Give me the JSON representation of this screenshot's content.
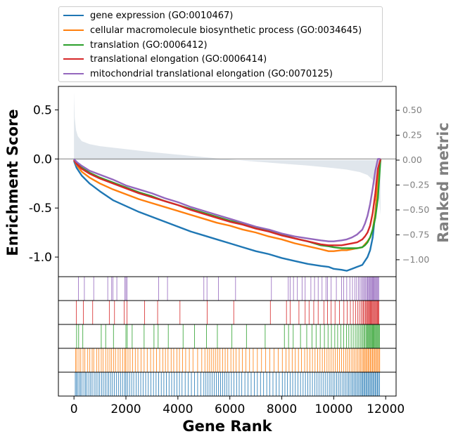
{
  "chart_data": {
    "type": "line",
    "title": "",
    "xlabel": "Gene Rank",
    "ylabel": "Enrichment Score",
    "y2label": "Ranked metric",
    "xlim": [
      -600,
      12400
    ],
    "ylim": [
      -1.2,
      0.74
    ],
    "y2lim": [
      -1.17,
      0.74
    ],
    "x_ticks": [
      0,
      2000,
      4000,
      6000,
      8000,
      10000,
      12000
    ],
    "x_tick_labels": [
      "0",
      "2000",
      "4000",
      "6000",
      "8000",
      "10000",
      "12000"
    ],
    "y_ticks": [
      0.5,
      0.0,
      -0.5,
      -1.0
    ],
    "y_tick_labels": [
      "0.5",
      "0.0",
      "-0.5",
      "-1.0"
    ],
    "y2_ticks": [
      0.5,
      0.25,
      0.0,
      -0.25,
      -0.5,
      -0.75,
      -1.0
    ],
    "y2_tick_labels": [
      "0.50",
      "0.25",
      "0.00",
      "−0.25",
      "−0.50",
      "−0.75",
      "−1.00"
    ],
    "legend_position": "top (above plot)",
    "grid": false,
    "ranked_metric": {
      "color": "#d5dee6",
      "x": [
        0,
        30,
        80,
        150,
        300,
        600,
        1000,
        2000,
        3000,
        4000,
        5000,
        6000,
        7000,
        8000,
        9000,
        10000,
        10500,
        11000,
        11300,
        11500,
        11650,
        11750,
        11800
      ],
      "values": [
        0.68,
        0.42,
        0.3,
        0.24,
        0.19,
        0.16,
        0.14,
        0.11,
        0.08,
        0.055,
        0.03,
        0.005,
        -0.015,
        -0.035,
        -0.055,
        -0.08,
        -0.095,
        -0.12,
        -0.15,
        -0.2,
        -0.3,
        -0.42,
        -0.55
      ]
    },
    "series": [
      {
        "name": "gene expression (GO:0010467)",
        "color": "#1f77b4",
        "x": [
          0,
          100,
          300,
          600,
          1000,
          1500,
          2000,
          2500,
          3000,
          3500,
          4000,
          4500,
          5000,
          5500,
          6000,
          6500,
          7000,
          7500,
          8000,
          8500,
          9000,
          9500,
          9800,
          10000,
          10300,
          10500,
          10700,
          10900,
          11100,
          11200,
          11300,
          11400,
          11500,
          11600,
          11700,
          11800
        ],
        "values": [
          -0.02,
          -0.09,
          -0.17,
          -0.25,
          -0.33,
          -0.42,
          -0.48,
          -0.54,
          -0.59,
          -0.64,
          -0.69,
          -0.74,
          -0.78,
          -0.82,
          -0.86,
          -0.9,
          -0.94,
          -0.97,
          -1.01,
          -1.04,
          -1.07,
          -1.09,
          -1.1,
          -1.12,
          -1.13,
          -1.14,
          -1.12,
          -1.1,
          -1.08,
          -1.04,
          -1.0,
          -0.93,
          -0.8,
          -0.55,
          -0.2,
          0.0
        ]
      },
      {
        "name": "cellular macromolecule biosynthetic process (GO:0034645)",
        "color": "#ff7f0e",
        "x": [
          0,
          100,
          300,
          600,
          1000,
          1500,
          2000,
          2500,
          3000,
          3500,
          4000,
          4500,
          5000,
          5500,
          6000,
          6500,
          7000,
          7500,
          8000,
          8500,
          9000,
          9500,
          9800,
          10000,
          10300,
          10500,
          10700,
          10900,
          11100,
          11200,
          11300,
          11400,
          11500,
          11600,
          11700,
          11800
        ],
        "values": [
          -0.01,
          -0.06,
          -0.13,
          -0.19,
          -0.25,
          -0.31,
          -0.36,
          -0.41,
          -0.45,
          -0.49,
          -0.53,
          -0.57,
          -0.61,
          -0.65,
          -0.68,
          -0.72,
          -0.75,
          -0.79,
          -0.82,
          -0.86,
          -0.89,
          -0.92,
          -0.94,
          -0.94,
          -0.93,
          -0.93,
          -0.92,
          -0.91,
          -0.9,
          -0.87,
          -0.84,
          -0.8,
          -0.72,
          -0.55,
          -0.22,
          0.0
        ]
      },
      {
        "name": "translation (GO:0006412)",
        "color": "#2ca02c",
        "x": [
          0,
          100,
          300,
          600,
          1000,
          1500,
          2000,
          2500,
          3000,
          3500,
          4000,
          4500,
          5000,
          5500,
          6000,
          6500,
          7000,
          7500,
          8000,
          8500,
          9000,
          9500,
          9800,
          10000,
          10300,
          10500,
          10700,
          10900,
          11100,
          11200,
          11300,
          11400,
          11500,
          11600,
          11700,
          11800
        ],
        "values": [
          0.0,
          -0.04,
          -0.09,
          -0.14,
          -0.19,
          -0.24,
          -0.29,
          -0.34,
          -0.38,
          -0.43,
          -0.47,
          -0.51,
          -0.55,
          -0.59,
          -0.63,
          -0.66,
          -0.7,
          -0.73,
          -0.77,
          -0.81,
          -0.84,
          -0.88,
          -0.89,
          -0.9,
          -0.91,
          -0.91,
          -0.91,
          -0.91,
          -0.9,
          -0.88,
          -0.85,
          -0.8,
          -0.72,
          -0.6,
          -0.4,
          0.0
        ]
      },
      {
        "name": "translational elongation (GO:0006414)",
        "color": "#d62728",
        "x": [
          0,
          100,
          300,
          600,
          1000,
          1500,
          2000,
          2500,
          3000,
          3500,
          4000,
          4500,
          5000,
          5500,
          6000,
          6500,
          7000,
          7500,
          8000,
          8500,
          9000,
          9500,
          9800,
          10000,
          10300,
          10500,
          10700,
          10900,
          11100,
          11200,
          11300,
          11400,
          11500,
          11600,
          11700,
          11800
        ],
        "values": [
          -0.01,
          -0.05,
          -0.1,
          -0.15,
          -0.2,
          -0.25,
          -0.3,
          -0.35,
          -0.39,
          -0.43,
          -0.47,
          -0.52,
          -0.56,
          -0.6,
          -0.64,
          -0.67,
          -0.71,
          -0.74,
          -0.78,
          -0.81,
          -0.84,
          -0.87,
          -0.88,
          -0.88,
          -0.88,
          -0.87,
          -0.86,
          -0.85,
          -0.82,
          -0.79,
          -0.75,
          -0.68,
          -0.55,
          -0.35,
          -0.1,
          0.0
        ]
      },
      {
        "name": "mitochondrial translational elongation (GO:0070125)",
        "color": "#9467bd",
        "x": [
          0,
          100,
          300,
          600,
          1000,
          1500,
          2000,
          2500,
          3000,
          3500,
          4000,
          4500,
          5000,
          5500,
          6000,
          6500,
          7000,
          7500,
          8000,
          8500,
          9000,
          9500,
          9800,
          10000,
          10300,
          10500,
          10700,
          10900,
          11100,
          11200,
          11300,
          11400,
          11500,
          11600,
          11700,
          11800
        ],
        "values": [
          0.0,
          -0.03,
          -0.07,
          -0.12,
          -0.16,
          -0.21,
          -0.27,
          -0.31,
          -0.35,
          -0.4,
          -0.44,
          -0.49,
          -0.53,
          -0.57,
          -0.61,
          -0.65,
          -0.69,
          -0.72,
          -0.76,
          -0.79,
          -0.81,
          -0.83,
          -0.84,
          -0.84,
          -0.83,
          -0.82,
          -0.8,
          -0.77,
          -0.72,
          -0.66,
          -0.58,
          -0.46,
          -0.3,
          -0.12,
          0.0,
          0.0
        ]
      }
    ],
    "hit_tracks": [
      {
        "series": "mitochondrial translational elongation (GO:0070125)",
        "color": "#9467bd",
        "hits": [
          170,
          400,
          760,
          1300,
          1450,
          1500,
          1650,
          1960,
          2000,
          2040,
          3260,
          3600,
          5000,
          5120,
          5560,
          6220,
          7600,
          8250,
          8320,
          8450,
          8600,
          8780,
          8900,
          9120,
          9260,
          9400,
          9550,
          9700,
          9760,
          9900,
          10100,
          10300,
          10380,
          10500,
          10620,
          10720,
          10810,
          10880,
          10950,
          11010,
          11060,
          11110,
          11150,
          11190,
          11230,
          11270,
          11300,
          11340,
          11370,
          11400,
          11430,
          11460,
          11490,
          11520,
          11550,
          11580,
          11610,
          11640,
          11670,
          11700,
          11730
        ]
      },
      {
        "series": "translational elongation (GO:0006414)",
        "color": "#d62728",
        "hits": [
          90,
          360,
          720,
          1360,
          1560,
          1930,
          2040,
          2720,
          3220,
          4080,
          5130,
          6150,
          7560,
          8180,
          8320,
          8660,
          8900,
          9050,
          9230,
          9400,
          9620,
          9760,
          9900,
          10050,
          10220,
          10390,
          10520,
          10640,
          10750,
          10840,
          10920,
          10990,
          11050,
          11100,
          11140,
          11180,
          11220,
          11260,
          11290,
          11320,
          11350,
          11380,
          11410,
          11440,
          11470,
          11500,
          11530,
          11560,
          11590,
          11620,
          11650,
          11680,
          11710,
          11740
        ]
      },
      {
        "series": "translation (GO:0006412)",
        "color": "#2ca02c",
        "hits": [
          100,
          180,
          340,
          1050,
          1220,
          1520,
          2000,
          2050,
          2240,
          2700,
          3080,
          3240,
          3630,
          4200,
          4640,
          5100,
          5520,
          6080,
          6640,
          7360,
          8100,
          8260,
          8440,
          8720,
          8960,
          9160,
          9320,
          9480,
          9640,
          9780,
          9910,
          10040,
          10150,
          10270,
          10380,
          10490,
          10580,
          10670,
          10750,
          10830,
          10900,
          10960,
          11020,
          11070,
          11120,
          11160,
          11200,
          11240,
          11280,
          11310,
          11340,
          11370,
          11400,
          11430,
          11460,
          11490,
          11520,
          11550,
          11580,
          11610,
          11640,
          11670,
          11700,
          11730,
          11760
        ]
      },
      {
        "series": "cellular macromolecule biosynthetic process (GO:0034645)",
        "color": "#ff7f0e",
        "hits": [
          60,
          110,
          190,
          260,
          350,
          420,
          530,
          610,
          700,
          760,
          880,
          960,
          1050,
          1120,
          1220,
          1300,
          1380,
          1450,
          1530,
          1600,
          1700,
          1780,
          1880,
          1960,
          2000,
          2080,
          2160,
          2260,
          2360,
          2460,
          2580,
          2700,
          2820,
          2950,
          3060,
          3180,
          3300,
          3420,
          3520,
          3620,
          3740,
          3840,
          3960,
          4060,
          4180,
          4300,
          4440,
          4580,
          4760,
          4920,
          5040,
          5140,
          5220,
          5300,
          5380,
          5460,
          5540,
          5620,
          5720,
          5820,
          5920,
          6040,
          6140,
          6240,
          6360,
          6480,
          6620,
          6760,
          6900,
          7060,
          7220,
          7380,
          7540,
          7700,
          7860,
          8020,
          8160,
          8280,
          8400,
          8520,
          8640,
          8760,
          8880,
          8980,
          9080,
          9180,
          9280,
          9380,
          9470,
          9560,
          9650,
          9740,
          9820,
          9900,
          9980,
          10060,
          10140,
          10220,
          10300,
          10380,
          10460,
          10530,
          10600,
          10670,
          10740,
          10800,
          10860,
          10920,
          10980,
          11030,
          11080,
          11130,
          11170,
          11210,
          11250,
          11290,
          11330,
          11370,
          11410,
          11450,
          11490,
          11530,
          11570,
          11610,
          11650,
          11690,
          11730,
          11770
        ]
      },
      {
        "series": "gene expression (GO:0010467)",
        "color": "#1f77b4",
        "hits": [
          50,
          90,
          140,
          200,
          250,
          310,
          380,
          440,
          500,
          570,
          640,
          700,
          780,
          850,
          920,
          990,
          1060,
          1130,
          1200,
          1270,
          1340,
          1410,
          1480,
          1550,
          1630,
          1710,
          1790,
          1870,
          1950,
          2000,
          2060,
          2140,
          2220,
          2300,
          2390,
          2480,
          2570,
          2660,
          2760,
          2860,
          2960,
          3060,
          3160,
          3260,
          3360,
          3460,
          3560,
          3660,
          3760,
          3860,
          3960,
          4060,
          4160,
          4280,
          4400,
          4520,
          4640,
          4760,
          4880,
          5000,
          5080,
          5160,
          5240,
          5320,
          5400,
          5480,
          5560,
          5640,
          5720,
          5800,
          5880,
          5960,
          6060,
          6160,
          6260,
          6360,
          6460,
          6580,
          6700,
          6820,
          6940,
          7060,
          7180,
          7300,
          7420,
          7540,
          7660,
          7780,
          7900,
          8020,
          8120,
          8220,
          8320,
          8420,
          8520,
          8620,
          8720,
          8820,
          8910,
          9000,
          9090,
          9180,
          9270,
          9350,
          9430,
          9510,
          9590,
          9670,
          9750,
          9830,
          9900,
          9970,
          10040,
          10110,
          10180,
          10250,
          10320,
          10390,
          10450,
          10510,
          10570,
          10630,
          10690,
          10740,
          10790,
          10840,
          10890,
          10940,
          10990,
          11040,
          11080,
          11120,
          11160,
          11200,
          11240,
          11280,
          11320,
          11360,
          11400,
          11440,
          11480,
          11520,
          11560,
          11600,
          11640,
          11680,
          11720,
          11760
        ]
      }
    ]
  }
}
